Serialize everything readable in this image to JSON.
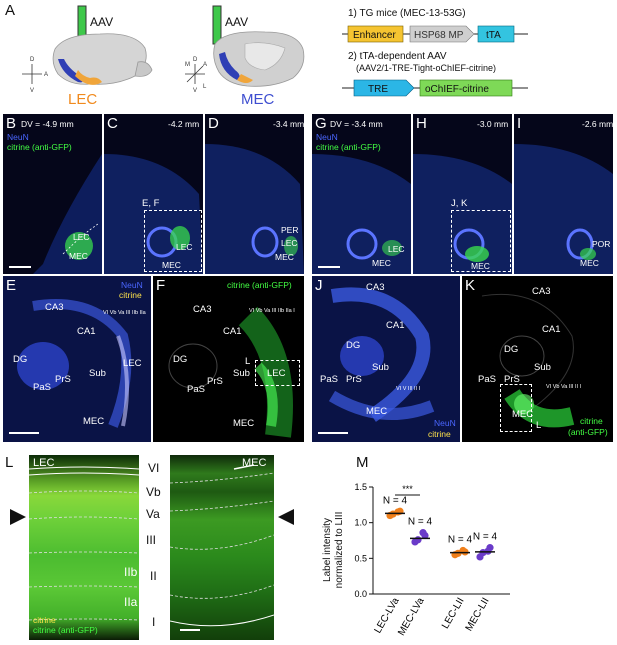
{
  "panels": {
    "A": {
      "label": "A",
      "virus_left": "AAV",
      "virus_right": "AAV",
      "region_left": "LEC",
      "region_right": "MEC",
      "axes_left": {
        "d": "D",
        "v": "V",
        "p": "P",
        "a": "A"
      },
      "axes_right": {
        "d": "D",
        "v": "V",
        "p": "P",
        "a": "A",
        "m": "M",
        "l": "L"
      },
      "construct1_title": "1) TG mice (MEC-13-53G)",
      "construct1_parts": [
        "Enhancer",
        "HSP68 MP",
        "tTA"
      ],
      "construct2_title": "2) tTA-dependent AAV",
      "construct2_subtitle": "(AAV2/1-TRE-Tight-oChIEF-citrine)",
      "construct2_parts": [
        "TRE",
        "oChIEF-citrine"
      ]
    },
    "B": {
      "label": "B",
      "depth": "DV = -4.9 mm",
      "stain1": "NeuN",
      "stain2": "citrine (anti-GFP)",
      "r1": "LEC",
      "r2": "MEC"
    },
    "C": {
      "label": "C",
      "depth": "-4.2 mm",
      "box": "E, F",
      "r1": "LEC",
      "r2": "MEC"
    },
    "D": {
      "label": "D",
      "depth": "-3.4 mm",
      "r1": "PER",
      "r2": "LEC",
      "r3": "MEC"
    },
    "G": {
      "label": "G",
      "depth": "DV = -3.4 mm",
      "stain1": "NeuN",
      "stain2": "citrine (anti-GFP)",
      "r1": "LEC",
      "r2": "MEC"
    },
    "H": {
      "label": "H",
      "depth": "-3.0 mm",
      "box": "J, K",
      "r1": "MEC"
    },
    "I": {
      "label": "I",
      "depth": "-2.6 mm",
      "r1": "POR",
      "r2": "MEC"
    },
    "E": {
      "label": "E",
      "stain1": "NeuN",
      "stain2": "citrine",
      "regions": [
        "CA3",
        "CA1",
        "DG",
        "Sub",
        "PrS",
        "PaS",
        "LEC",
        "MEC"
      ],
      "layers": "VI Vb Va III IIb IIa"
    },
    "F": {
      "label": "F",
      "stain": "citrine (anti-GFP)",
      "box": "L",
      "regions": [
        "CA3",
        "CA1",
        "DG",
        "Sub",
        "PrS",
        "PaS",
        "LEC",
        "MEC"
      ],
      "layers": "VI Vb Va III IIb IIa I"
    },
    "J": {
      "label": "J",
      "stain1": "NeuN",
      "stain2": "citrine",
      "regions": [
        "CA3",
        "CA1",
        "DG",
        "Sub",
        "PrS",
        "PaS",
        "MEC"
      ],
      "layers": "VI V III II I"
    },
    "K": {
      "label": "K",
      "stain1": "citrine",
      "stain2": "(anti-GFP)",
      "box": "L",
      "regions": [
        "CA3",
        "CA1",
        "DG",
        "Sub",
        "PrS",
        "PaS",
        "MEC"
      ],
      "layers": "VI Vb Va III II I"
    },
    "L": {
      "label": "L",
      "left_region": "LEC",
      "right_region": "MEC",
      "stain1": "citrine",
      "stain2": "citrine (anti-GFP)",
      "layers": [
        "VI",
        "Vb",
        "Va",
        "III",
        "IIb",
        "II",
        "IIa",
        "I"
      ]
    },
    "M": {
      "label": "M"
    }
  },
  "chart_data": {
    "type": "scatter",
    "ylabel_line1": "Label intensity",
    "ylabel_line2": "normalized to LIII",
    "ylim": [
      0.0,
      1.5
    ],
    "yticks": [
      "0.0",
      "0.5",
      "1.0",
      "1.5"
    ],
    "categories": [
      "LEC-LVa",
      "MEC-LVa",
      "LEC-LII",
      "MEC-LII"
    ],
    "n_labels": [
      "N = 4",
      "N = 4",
      "N = 4",
      "N = 4"
    ],
    "significance": "***",
    "colors": [
      "#f07f1a",
      "#6a3bc9",
      "#f07f1a",
      "#6a3bc9"
    ],
    "means": [
      1.13,
      0.78,
      0.58,
      0.59
    ],
    "points": [
      [
        1.1,
        1.16,
        1.12,
        1.15
      ],
      [
        0.73,
        0.82,
        0.76,
        0.86
      ],
      [
        0.55,
        0.59,
        0.57,
        0.61
      ],
      [
        0.52,
        0.65,
        0.58,
        0.6
      ]
    ]
  }
}
